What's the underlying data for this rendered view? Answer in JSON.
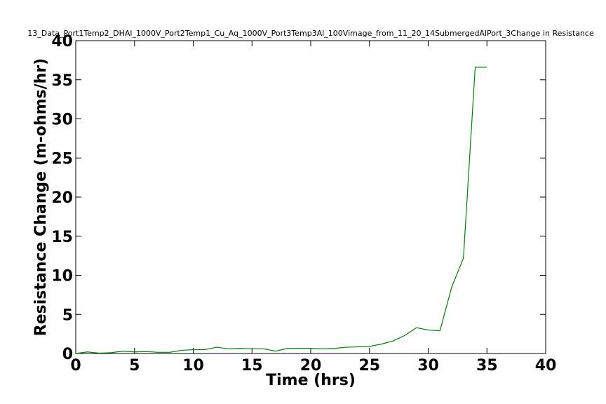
{
  "chart_data": {
    "type": "line",
    "title": "13_Data_Port1Temp2_DHAl_1000V_Port2Temp1_Cu_Aq_1000V_Port3Temp3Al_100Vimage_from_11_20_14SubmergedAlPort_3Change in Resistance",
    "xlabel": "Time (hrs)",
    "ylabel": "Resistance Change (m-ohms/hr)",
    "xlim": [
      0,
      40
    ],
    "ylim": [
      0,
      40
    ],
    "xticks": [
      0,
      5,
      10,
      15,
      20,
      25,
      30,
      35,
      40
    ],
    "yticks": [
      0,
      5,
      10,
      15,
      20,
      25,
      30,
      35,
      40
    ],
    "grid": false,
    "series": [
      {
        "color": "#008000",
        "x": [
          0,
          1,
          2,
          3,
          4,
          5,
          6,
          7,
          8,
          9,
          10,
          11,
          12,
          13,
          14,
          15,
          16,
          17,
          18,
          19,
          20,
          21,
          22,
          23,
          24,
          25,
          26,
          27,
          28,
          29,
          30,
          31,
          32,
          33,
          34,
          35
        ],
        "y": [
          0.0,
          0.2,
          0.05,
          0.1,
          0.3,
          0.2,
          0.25,
          0.15,
          0.15,
          0.4,
          0.5,
          0.5,
          0.8,
          0.6,
          0.65,
          0.6,
          0.6,
          0.3,
          0.65,
          0.65,
          0.65,
          0.6,
          0.65,
          0.8,
          0.85,
          0.9,
          1.2,
          1.6,
          2.3,
          3.3,
          3.0,
          2.9,
          8.5,
          12.2,
          36.6,
          36.6
        ]
      }
    ]
  }
}
